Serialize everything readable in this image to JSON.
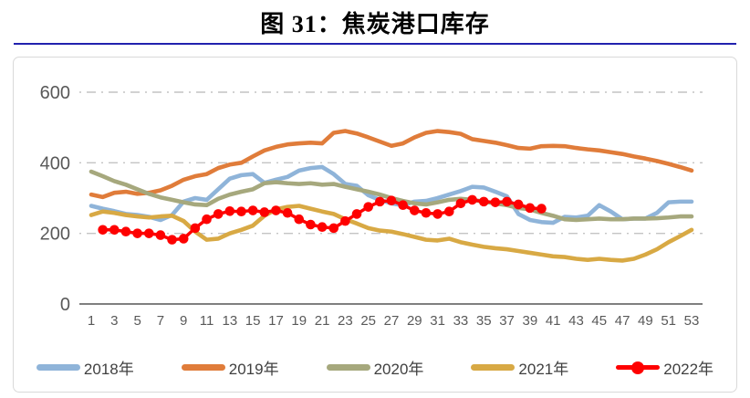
{
  "title": "图 31：焦炭港口库存",
  "chart_data": {
    "type": "line",
    "title": "图 31：焦炭港口库存",
    "x_start": 1,
    "xlim": [
      1,
      53
    ],
    "ylim": [
      0,
      650
    ],
    "xticks": [
      1,
      3,
      5,
      7,
      9,
      11,
      13,
      15,
      17,
      19,
      21,
      23,
      25,
      27,
      29,
      31,
      33,
      35,
      37,
      39,
      41,
      43,
      45,
      47,
      49,
      51,
      53
    ],
    "yticks": [
      0,
      200,
      400,
      600
    ],
    "grid": "horizontal dash-dot lines at 200, 400, 600",
    "legend_position": "bottom",
    "axis_text_color": "#595959",
    "grid_color": "#C4C4C4",
    "axis_line_color": "#7F7F7F",
    "series": [
      {
        "name": "2018年",
        "color": "#8FB4D9",
        "marker": false,
        "values": [
          278,
          270,
          263,
          255,
          252,
          247,
          238,
          252,
          290,
          300,
          295,
          325,
          355,
          365,
          368,
          343,
          352,
          360,
          378,
          385,
          388,
          368,
          340,
          335,
          308,
          295,
          285,
          280,
          290,
          292,
          300,
          310,
          320,
          332,
          330,
          318,
          305,
          255,
          238,
          232,
          230,
          247,
          245,
          250,
          280,
          262,
          240,
          242,
          242,
          258,
          288,
          290,
          290
        ]
      },
      {
        "name": "2019年",
        "color": "#E07C3A",
        "marker": false,
        "values": [
          310,
          303,
          315,
          318,
          312,
          315,
          322,
          335,
          352,
          362,
          368,
          385,
          395,
          400,
          418,
          435,
          445,
          452,
          455,
          457,
          455,
          485,
          490,
          483,
          472,
          460,
          448,
          455,
          472,
          485,
          490,
          487,
          482,
          467,
          462,
          457,
          450,
          442,
          440,
          447,
          448,
          447,
          442,
          438,
          435,
          430,
          425,
          418,
          412,
          405,
          397,
          388,
          378
        ]
      },
      {
        "name": "2020年",
        "color": "#A6A87D",
        "marker": false,
        "values": [
          375,
          362,
          348,
          338,
          325,
          312,
          302,
          295,
          288,
          282,
          280,
          298,
          310,
          318,
          325,
          342,
          345,
          342,
          340,
          342,
          338,
          340,
          332,
          325,
          318,
          310,
          300,
          292,
          285,
          282,
          288,
          295,
          298,
          295,
          290,
          285,
          280,
          272,
          268,
          258,
          250,
          240,
          238,
          240,
          242,
          240,
          240,
          242,
          242,
          243,
          245,
          248,
          248
        ]
      },
      {
        "name": "2021年",
        "color": "#D8A944",
        "marker": false,
        "values": [
          252,
          262,
          258,
          252,
          248,
          245,
          248,
          250,
          235,
          205,
          182,
          185,
          200,
          210,
          222,
          250,
          268,
          275,
          278,
          270,
          262,
          255,
          240,
          228,
          215,
          208,
          205,
          198,
          190,
          182,
          180,
          185,
          175,
          168,
          162,
          158,
          155,
          150,
          145,
          140,
          135,
          133,
          128,
          125,
          128,
          125,
          123,
          128,
          140,
          155,
          175,
          192,
          210
        ]
      },
      {
        "name": "2022年",
        "color": "#FE0000",
        "marker": true,
        "values": [
          null,
          210,
          210,
          205,
          200,
          200,
          195,
          182,
          185,
          215,
          240,
          255,
          263,
          262,
          265,
          260,
          265,
          258,
          240,
          225,
          218,
          215,
          235,
          255,
          275,
          290,
          293,
          280,
          265,
          258,
          255,
          262,
          285,
          295,
          290,
          288,
          290,
          282,
          272,
          270
        ]
      }
    ]
  }
}
